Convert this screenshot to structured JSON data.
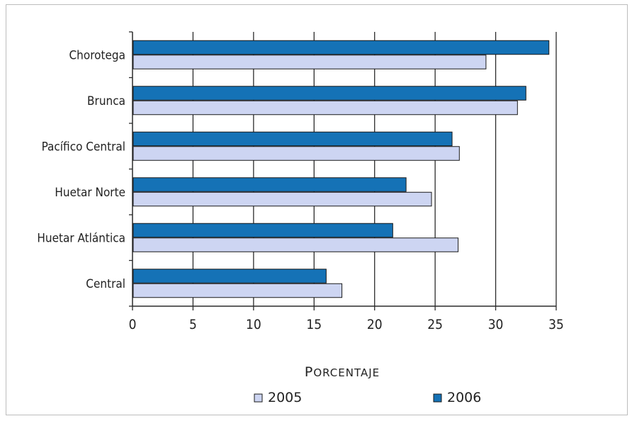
{
  "chart_data": {
    "type": "bar",
    "orientation": "horizontal",
    "title": "",
    "xlabel": "Porcentaje",
    "ylabel": "",
    "xlim": [
      0,
      35
    ],
    "xticks": [
      0,
      5,
      10,
      15,
      20,
      25,
      30,
      35
    ],
    "grid": true,
    "legend_position": "bottom",
    "categories": [
      "Chorotega",
      "Brunca",
      "Pacífico Central",
      "Huetar Norte",
      "Huetar Atlántica",
      "Central"
    ],
    "series": [
      {
        "name": "2005",
        "color": "#cdd5f2",
        "values": [
          29.2,
          31.8,
          27.0,
          24.7,
          26.9,
          17.3
        ]
      },
      {
        "name": "2006",
        "color": "#1572b6",
        "values": [
          34.4,
          32.5,
          26.4,
          22.6,
          21.5,
          16.0
        ]
      }
    ]
  }
}
